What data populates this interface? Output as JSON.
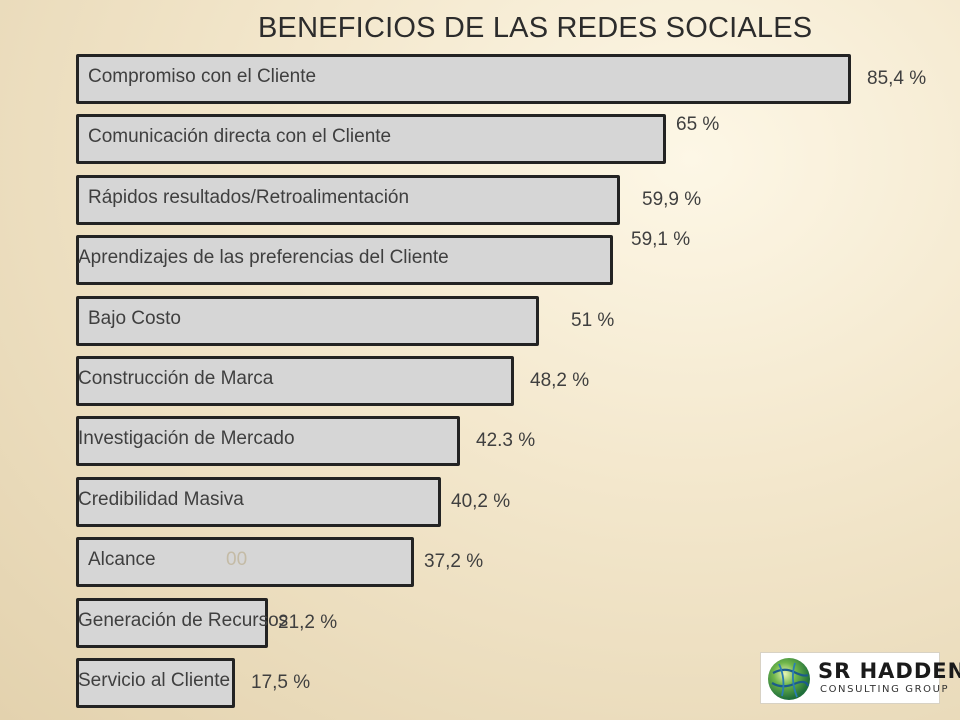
{
  "chart_data": {
    "type": "bar",
    "orientation": "horizontal",
    "title": "BENEFICIOS DE LAS REDES SOCIALES",
    "categories": [
      "Compromiso con el Cliente",
      "Comunicación directa con el Cliente",
      "Rápidos resultados/Retroalimentación",
      "Aprendizajes de las preferencias del Cliente",
      "Bajo Costo",
      "Construcción de Marca",
      "Investigación de Mercado",
      "Credibilidad Masiva",
      "Alcance",
      "Generación de Recursos",
      "Servicio al Cliente"
    ],
    "values": [
      85.4,
      65,
      59.9,
      59.1,
      51,
      48.2,
      42.3,
      40.2,
      37.2,
      21.2,
      17.5
    ],
    "value_labels": [
      "85,4 %",
      "65 %",
      "59,9 %",
      "59,1 %",
      "51 %",
      "48,2 %",
      "42.3 %",
      "40,2 %",
      "37,2 %",
      "21,2 %",
      "17,5 %"
    ],
    "unit": "%",
    "colors": {
      "bar_fill": "#d6d6d6",
      "bar_border": "#232323",
      "text": "#3f3f3f"
    },
    "ghost_text": "00"
  },
  "logo": {
    "name": "SR HADDEN",
    "subtitle": "CONSULTING GROUP"
  }
}
